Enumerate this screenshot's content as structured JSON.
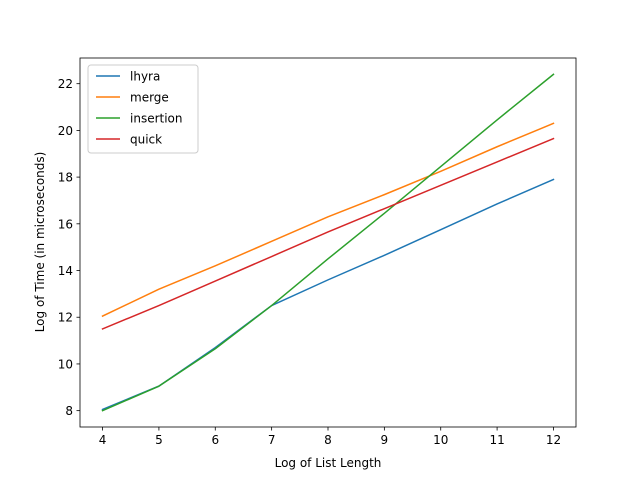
{
  "chart_data": {
    "type": "line",
    "title": "",
    "xlabel": "Log of List Length",
    "ylabel": "Log of Time (in microseconds)",
    "x": [
      4,
      5,
      6,
      7,
      8,
      9,
      10,
      11,
      12
    ],
    "xlim": [
      3.6,
      12.4
    ],
    "ylim": [
      7.3,
      23.1
    ],
    "xticks": [
      4,
      5,
      6,
      7,
      8,
      9,
      10,
      11,
      12
    ],
    "yticks": [
      8,
      10,
      12,
      14,
      16,
      18,
      20,
      22
    ],
    "grid": false,
    "legend_position": "upper left",
    "series": [
      {
        "name": "lhyra",
        "color": "#1f77b4",
        "values": [
          8.05,
          9.05,
          10.7,
          12.5,
          13.6,
          14.65,
          15.75,
          16.85,
          17.9
        ]
      },
      {
        "name": "merge",
        "color": "#ff7f0e",
        "values": [
          12.05,
          13.2,
          14.2,
          15.25,
          16.3,
          17.25,
          18.25,
          19.3,
          20.3
        ]
      },
      {
        "name": "insertion",
        "color": "#2ca02c",
        "values": [
          8.0,
          9.05,
          10.65,
          12.5,
          14.5,
          16.45,
          18.45,
          20.45,
          22.4
        ]
      },
      {
        "name": "quick",
        "color": "#d62728",
        "values": [
          11.5,
          12.5,
          13.55,
          14.6,
          15.65,
          16.65,
          17.65,
          18.65,
          19.65
        ]
      }
    ]
  }
}
